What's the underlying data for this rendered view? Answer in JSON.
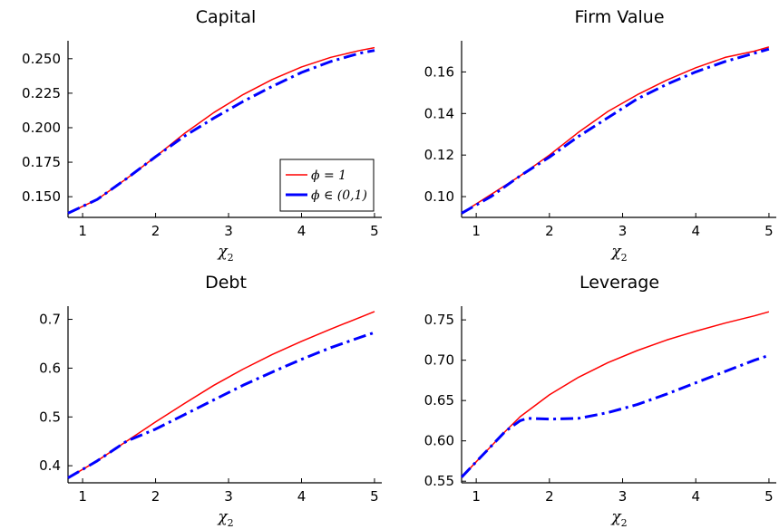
{
  "figure": {
    "legend": {
      "placement": "bottom-right of first panel",
      "entries": [
        {
          "label": "ϕ = 1",
          "color": "#ff0000"
        },
        {
          "label": "ϕ ∈ (0,1)",
          "color": "#0000ff"
        }
      ]
    }
  },
  "chart_data": [
    {
      "type": "line",
      "title": "Capital",
      "xlabel": "χ",
      "xlabel_sub": "2",
      "xlim": [
        0.8,
        5.1
      ],
      "ylim": [
        0.135,
        0.263
      ],
      "xticks": [
        1,
        2,
        3,
        4,
        5
      ],
      "yticks": [
        0.15,
        0.175,
        0.2,
        0.225,
        0.25
      ],
      "ytick_labels": [
        "0.150",
        "0.175",
        "0.200",
        "0.225",
        "0.250"
      ],
      "grid": false,
      "series": [
        {
          "name": "ϕ = 1",
          "color": "#ff0000",
          "style": "solid",
          "x": [
            0.8,
            1.2,
            1.6,
            2.0,
            2.4,
            2.8,
            3.2,
            3.6,
            4.0,
            4.4,
            4.8,
            5.0
          ],
          "y": [
            0.138,
            0.148,
            0.163,
            0.179,
            0.196,
            0.211,
            0.224,
            0.235,
            0.244,
            0.251,
            0.256,
            0.258
          ]
        },
        {
          "name": "ϕ ∈ (0,1)",
          "color": "#0000ff",
          "style": "dashdot",
          "x": [
            0.8,
            1.2,
            1.6,
            2.0,
            2.4,
            2.8,
            3.2,
            3.6,
            4.0,
            4.4,
            4.8,
            5.0
          ],
          "y": [
            0.138,
            0.148,
            0.163,
            0.179,
            0.194,
            0.207,
            0.219,
            0.23,
            0.24,
            0.248,
            0.254,
            0.256
          ]
        }
      ]
    },
    {
      "type": "line",
      "title": "Firm Value",
      "xlabel": "χ",
      "xlabel_sub": "2",
      "xlim": [
        0.8,
        5.1
      ],
      "ylim": [
        0.09,
        0.175
      ],
      "xticks": [
        1,
        2,
        3,
        4,
        5
      ],
      "yticks": [
        0.1,
        0.12,
        0.14,
        0.16
      ],
      "ytick_labels": [
        "0.10",
        "0.12",
        "0.14",
        "0.16"
      ],
      "grid": false,
      "series": [
        {
          "name": "ϕ = 1",
          "color": "#ff0000",
          "style": "solid",
          "x": [
            0.8,
            1.2,
            1.6,
            2.0,
            2.4,
            2.8,
            3.2,
            3.6,
            4.0,
            4.4,
            4.8,
            5.0
          ],
          "y": [
            0.092,
            0.101,
            0.11,
            0.12,
            0.131,
            0.141,
            0.149,
            0.156,
            0.162,
            0.167,
            0.17,
            0.172
          ]
        },
        {
          "name": "ϕ ∈ (0,1)",
          "color": "#0000ff",
          "style": "dashdot",
          "x": [
            0.8,
            1.2,
            1.6,
            2.0,
            2.4,
            2.8,
            3.2,
            3.6,
            4.0,
            4.4,
            4.8,
            5.0
          ],
          "y": [
            0.092,
            0.1,
            0.11,
            0.119,
            0.129,
            0.138,
            0.147,
            0.154,
            0.16,
            0.165,
            0.169,
            0.171
          ]
        }
      ]
    },
    {
      "type": "line",
      "title": "Debt",
      "xlabel": "χ",
      "xlabel_sub": "2",
      "xlim": [
        0.8,
        5.1
      ],
      "ylim": [
        0.365,
        0.727
      ],
      "xticks": [
        1,
        2,
        3,
        4,
        5
      ],
      "yticks": [
        0.4,
        0.5,
        0.6,
        0.7
      ],
      "ytick_labels": [
        "0.4",
        "0.5",
        "0.6",
        "0.7"
      ],
      "grid": false,
      "series": [
        {
          "name": "ϕ = 1",
          "color": "#ff0000",
          "style": "solid",
          "x": [
            0.8,
            1.2,
            1.6,
            2.0,
            2.4,
            2.8,
            3.2,
            3.6,
            4.0,
            4.4,
            4.8,
            5.0
          ],
          "y": [
            0.375,
            0.41,
            0.45,
            0.49,
            0.528,
            0.565,
            0.598,
            0.628,
            0.655,
            0.68,
            0.704,
            0.716
          ]
        },
        {
          "name": "ϕ ∈ (0,1)",
          "color": "#0000ff",
          "style": "dashdot",
          "x": [
            0.8,
            1.2,
            1.6,
            2.0,
            2.4,
            2.8,
            3.2,
            3.6,
            4.0,
            4.4,
            4.8,
            5.0
          ],
          "y": [
            0.375,
            0.41,
            0.45,
            0.475,
            0.505,
            0.535,
            0.565,
            0.592,
            0.618,
            0.642,
            0.663,
            0.673
          ]
        }
      ]
    },
    {
      "type": "line",
      "title": "Leverage",
      "xlabel": "χ",
      "xlabel_sub": "2",
      "xlim": [
        0.8,
        5.1
      ],
      "ylim": [
        0.548,
        0.767
      ],
      "xticks": [
        1,
        2,
        3,
        4,
        5
      ],
      "yticks": [
        0.55,
        0.6,
        0.65,
        0.7,
        0.75
      ],
      "ytick_labels": [
        "0.55",
        "0.60",
        "0.65",
        "0.70",
        "0.75"
      ],
      "grid": false,
      "series": [
        {
          "name": "ϕ = 1",
          "color": "#ff0000",
          "style": "solid",
          "x": [
            0.8,
            1.0,
            1.2,
            1.4,
            1.6,
            2.0,
            2.4,
            2.8,
            3.2,
            3.6,
            4.0,
            4.4,
            4.8,
            5.0
          ],
          "y": [
            0.555,
            0.574,
            0.593,
            0.612,
            0.63,
            0.657,
            0.679,
            0.697,
            0.712,
            0.725,
            0.736,
            0.746,
            0.755,
            0.76
          ]
        },
        {
          "name": "ϕ ∈ (0,1)",
          "color": "#0000ff",
          "style": "dashdot",
          "x": [
            0.8,
            1.0,
            1.2,
            1.4,
            1.6,
            1.7,
            2.0,
            2.4,
            2.8,
            3.2,
            3.6,
            4.0,
            4.4,
            4.8,
            5.0
          ],
          "y": [
            0.555,
            0.574,
            0.593,
            0.612,
            0.625,
            0.628,
            0.627,
            0.628,
            0.635,
            0.645,
            0.658,
            0.672,
            0.686,
            0.7,
            0.706
          ]
        }
      ]
    }
  ]
}
